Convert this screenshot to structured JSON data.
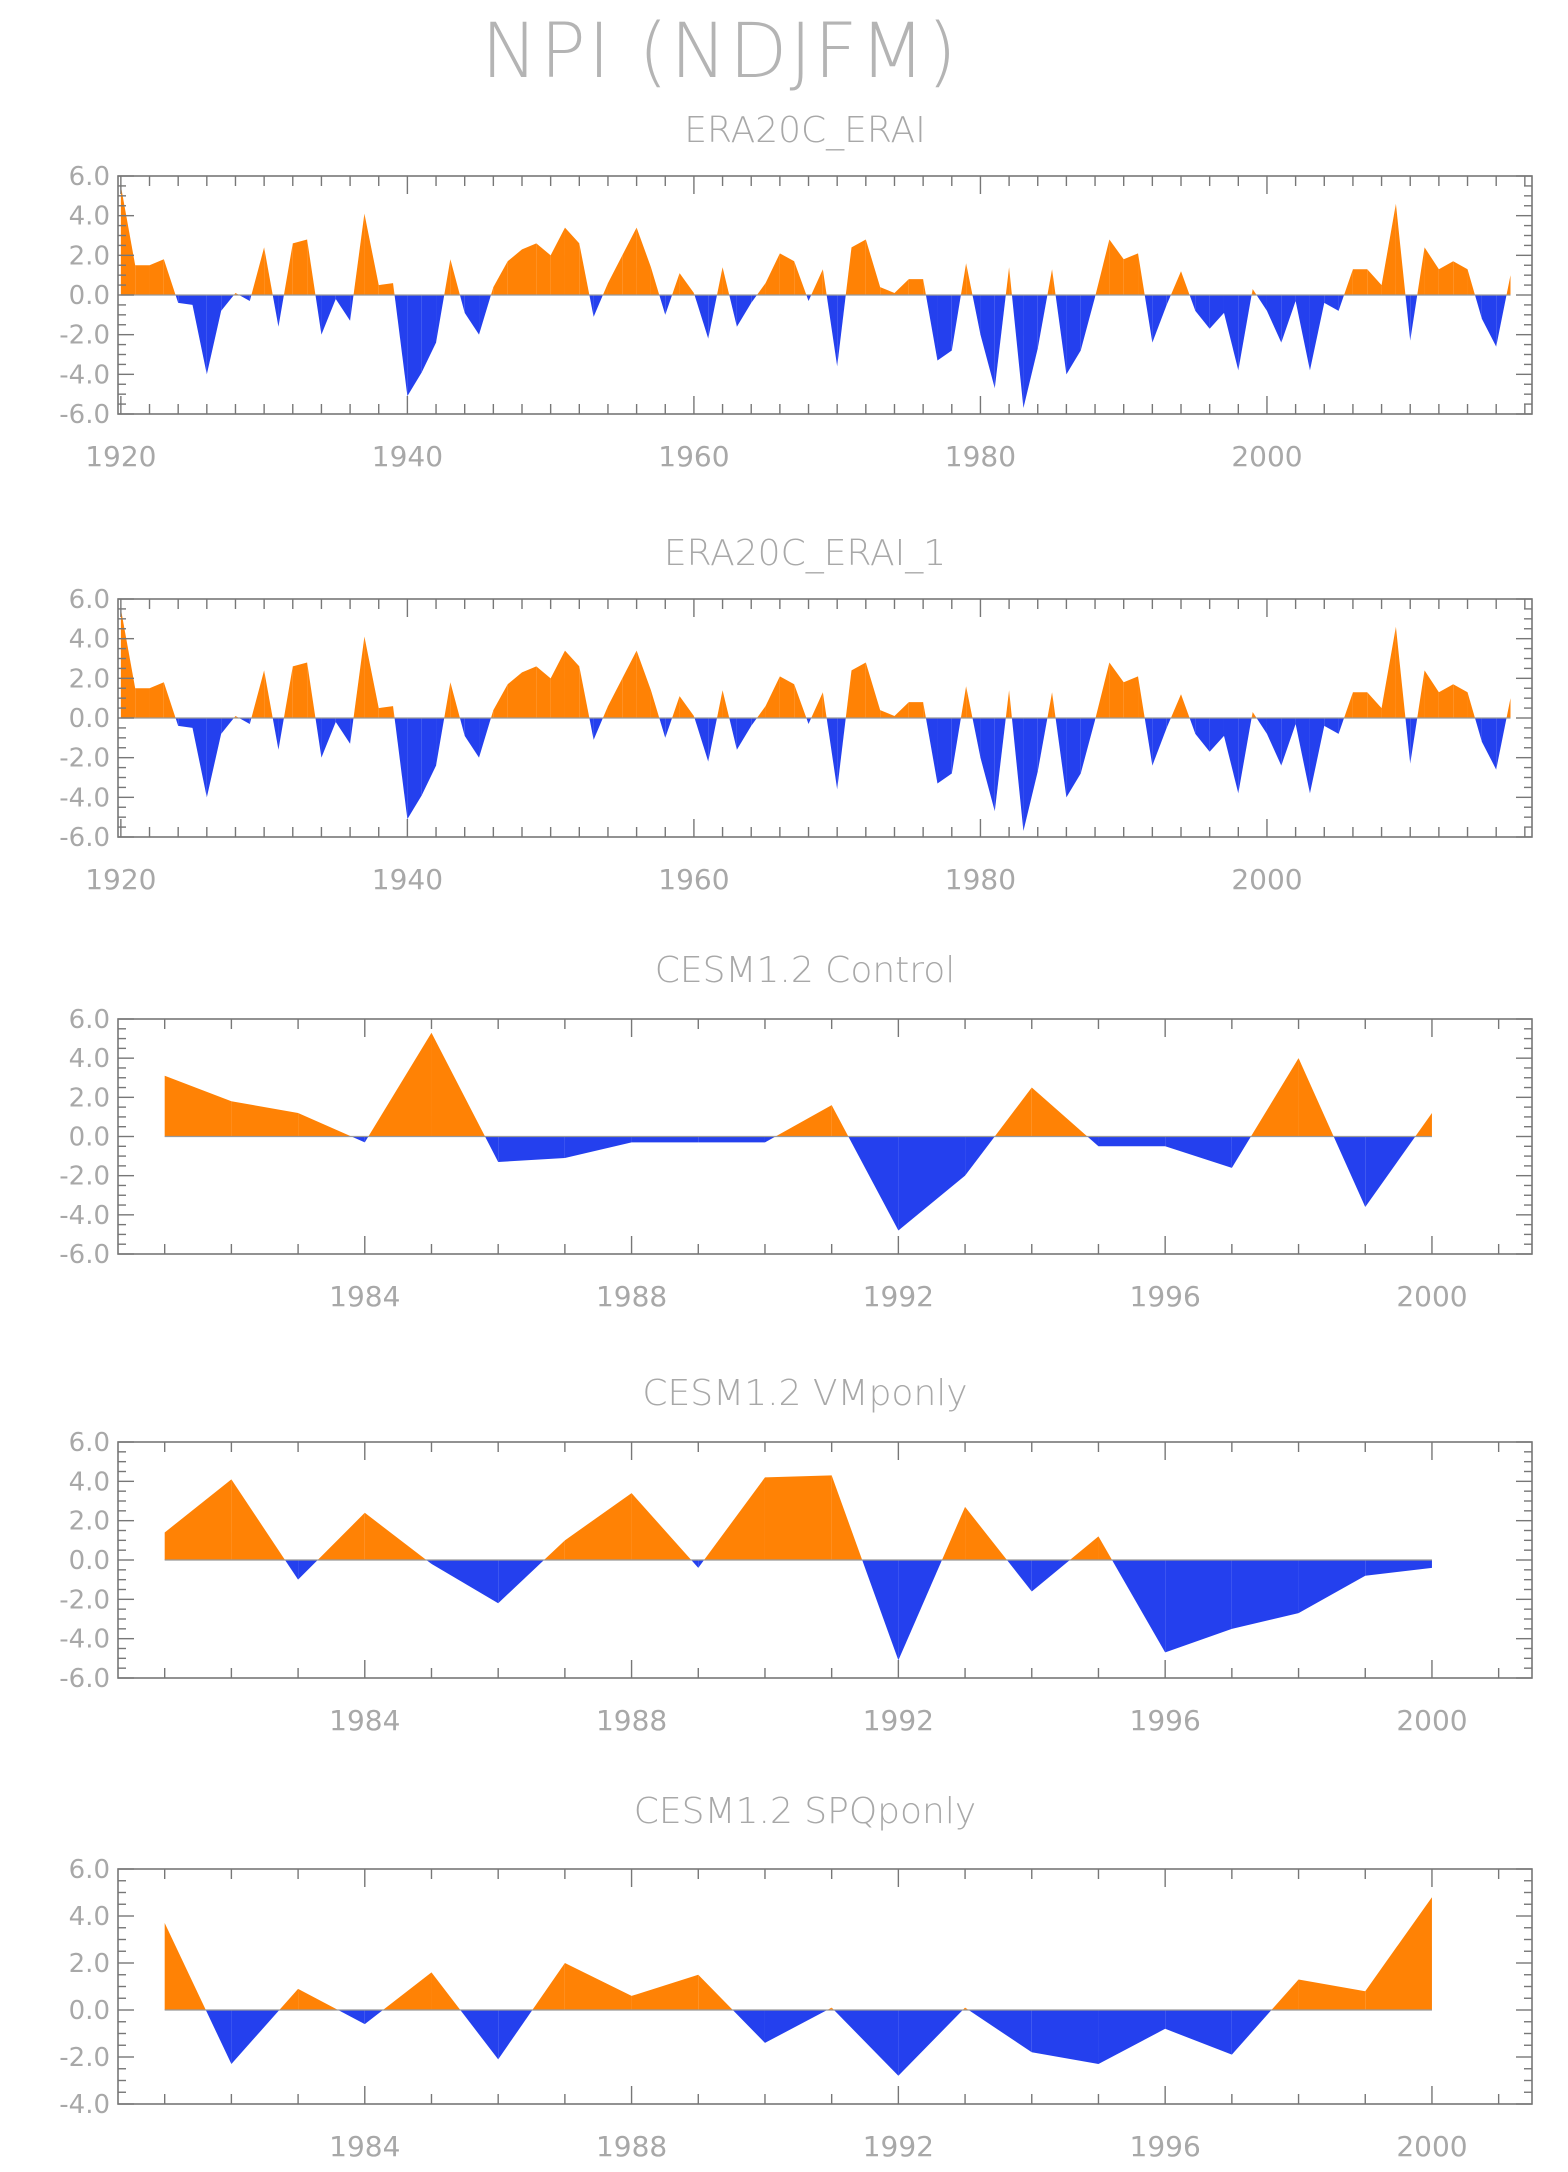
{
  "title": "NPI (NDJFM)",
  "colors": {
    "positive": "#ff8205",
    "negative": "#2440ee",
    "text": "#a8a8a8",
    "axis": "#777777"
  },
  "chart_data": [
    {
      "type": "area",
      "title": "ERA20C_ERAI",
      "x": [
        1920,
        1921,
        1922,
        1923,
        1924,
        1925,
        1926,
        1927,
        1928,
        1929,
        1930,
        1931,
        1932,
        1933,
        1934,
        1935,
        1936,
        1937,
        1938,
        1939,
        1940,
        1941,
        1942,
        1943,
        1944,
        1945,
        1946,
        1947,
        1948,
        1949,
        1950,
        1951,
        1952,
        1953,
        1954,
        1955,
        1956,
        1957,
        1958,
        1959,
        1960,
        1961,
        1962,
        1963,
        1964,
        1965,
        1966,
        1967,
        1968,
        1969,
        1970,
        1971,
        1972,
        1973,
        1974,
        1975,
        1976,
        1977,
        1978,
        1979,
        1980,
        1981,
        1982,
        1983,
        1984,
        1985,
        1986,
        1987,
        1988,
        1989,
        1990,
        1991,
        1992,
        1993,
        1994,
        1995,
        1996,
        1997,
        1998,
        1999,
        2000,
        2001,
        2002,
        2003,
        2004,
        2005,
        2006,
        2007,
        2008,
        2009,
        2010,
        2011,
        2012,
        2013,
        2014,
        2015,
        2016,
        2017
      ],
      "values": [
        5.5,
        1.5,
        1.5,
        1.8,
        -0.4,
        -0.5,
        -4.0,
        -0.8,
        0.1,
        -0.3,
        2.4,
        -1.6,
        2.6,
        2.8,
        -2.0,
        -0.2,
        -1.3,
        4.1,
        0.5,
        0.6,
        -5.1,
        -3.9,
        -2.4,
        1.8,
        -0.9,
        -2.0,
        0.4,
        1.7,
        2.3,
        2.6,
        2.0,
        3.4,
        2.6,
        -1.1,
        0.6,
        2.0,
        3.4,
        1.4,
        -1.0,
        1.1,
        0.1,
        -2.2,
        1.4,
        -1.6,
        -0.4,
        0.6,
        2.1,
        1.7,
        -0.3,
        1.3,
        -3.6,
        2.4,
        2.8,
        0.4,
        0.1,
        0.8,
        0.8,
        -3.3,
        -2.8,
        1.6,
        -2.0,
        -4.7,
        1.4,
        -5.7,
        -2.7,
        1.3,
        -4.0,
        -2.8,
        -0.1,
        2.8,
        1.8,
        2.1,
        -2.4,
        -0.5,
        1.2,
        -0.8,
        -1.7,
        -0.9,
        -3.8,
        0.3,
        -0.8,
        -2.4,
        -0.3,
        -3.8,
        -0.4,
        -0.8,
        1.3,
        1.3,
        0.5,
        4.6,
        -2.3,
        2.4,
        1.3,
        1.7,
        1.3,
        -1.2,
        -2.6,
        1.0
      ],
      "ylim": [
        -6.0,
        6.0
      ],
      "yticks": [
        "6.0",
        "4.0",
        "2.0",
        "0.0",
        "-2.0",
        "-4.0",
        "-6.0"
      ],
      "xticks": [
        "1920",
        "1940",
        "1960",
        "1980",
        "2000"
      ]
    },
    {
      "type": "area",
      "title": "ERA20C_ERAI_1",
      "x": [
        1920,
        1921,
        1922,
        1923,
        1924,
        1925,
        1926,
        1927,
        1928,
        1929,
        1930,
        1931,
        1932,
        1933,
        1934,
        1935,
        1936,
        1937,
        1938,
        1939,
        1940,
        1941,
        1942,
        1943,
        1944,
        1945,
        1946,
        1947,
        1948,
        1949,
        1950,
        1951,
        1952,
        1953,
        1954,
        1955,
        1956,
        1957,
        1958,
        1959,
        1960,
        1961,
        1962,
        1963,
        1964,
        1965,
        1966,
        1967,
        1968,
        1969,
        1970,
        1971,
        1972,
        1973,
        1974,
        1975,
        1976,
        1977,
        1978,
        1979,
        1980,
        1981,
        1982,
        1983,
        1984,
        1985,
        1986,
        1987,
        1988,
        1989,
        1990,
        1991,
        1992,
        1993,
        1994,
        1995,
        1996,
        1997,
        1998,
        1999,
        2000,
        2001,
        2002,
        2003,
        2004,
        2005,
        2006,
        2007,
        2008,
        2009,
        2010,
        2011,
        2012,
        2013,
        2014,
        2015,
        2016,
        2017
      ],
      "values": [
        5.5,
        1.5,
        1.5,
        1.8,
        -0.4,
        -0.5,
        -4.0,
        -0.8,
        0.1,
        -0.3,
        2.4,
        -1.6,
        2.6,
        2.8,
        -2.0,
        -0.2,
        -1.3,
        4.1,
        0.5,
        0.6,
        -5.1,
        -3.9,
        -2.4,
        1.8,
        -0.9,
        -2.0,
        0.4,
        1.7,
        2.3,
        2.6,
        2.0,
        3.4,
        2.6,
        -1.1,
        0.6,
        2.0,
        3.4,
        1.4,
        -1.0,
        1.1,
        0.1,
        -2.2,
        1.4,
        -1.6,
        -0.4,
        0.6,
        2.1,
        1.7,
        -0.3,
        1.3,
        -3.6,
        2.4,
        2.8,
        0.4,
        0.1,
        0.8,
        0.8,
        -3.3,
        -2.8,
        1.6,
        -2.0,
        -4.7,
        1.4,
        -5.7,
        -2.7,
        1.3,
        -4.0,
        -2.8,
        -0.1,
        2.8,
        1.8,
        2.1,
        -2.4,
        -0.5,
        1.2,
        -0.8,
        -1.7,
        -0.9,
        -3.8,
        0.3,
        -0.8,
        -2.4,
        -0.3,
        -3.8,
        -0.4,
        -0.8,
        1.3,
        1.3,
        0.5,
        4.6,
        -2.3,
        2.4,
        1.3,
        1.7,
        1.3,
        -1.2,
        -2.6,
        1.0
      ],
      "ylim": [
        -6.0,
        6.0
      ],
      "yticks": [
        "6.0",
        "4.0",
        "2.0",
        "0.0",
        "-2.0",
        "-4.0",
        "-6.0"
      ],
      "xticks": [
        "1920",
        "1940",
        "1960",
        "1980",
        "2000"
      ]
    },
    {
      "type": "area",
      "title": "CESM1.2 Control",
      "x": [
        1981,
        1982,
        1983,
        1984,
        1985,
        1986,
        1987,
        1988,
        1989,
        1990,
        1991,
        1992,
        1993,
        1994,
        1995,
        1996,
        1997,
        1998,
        1999,
        2000
      ],
      "values": [
        3.1,
        1.8,
        1.2,
        -0.3,
        5.3,
        -1.3,
        -1.1,
        -0.3,
        -0.3,
        -0.3,
        1.6,
        -4.8,
        -2.0,
        2.5,
        -0.5,
        -0.5,
        -1.6,
        4.0,
        -3.6,
        1.2
      ],
      "ylim": [
        -6.0,
        6.0
      ],
      "yticks": [
        "6.0",
        "4.0",
        "2.0",
        "0.0",
        "-2.0",
        "-4.0",
        "-6.0"
      ],
      "xticks": [
        "1984",
        "1988",
        "1992",
        "1996",
        "2000"
      ]
    },
    {
      "type": "area",
      "title": "CESM1.2 VMponly",
      "x": [
        1981,
        1982,
        1983,
        1984,
        1985,
        1986,
        1987,
        1988,
        1989,
        1990,
        1991,
        1992,
        1993,
        1994,
        1995,
        1996,
        1997,
        1998,
        1999,
        2000
      ],
      "values": [
        1.4,
        4.1,
        -1.0,
        2.4,
        -0.2,
        -2.2,
        1.0,
        3.4,
        -0.4,
        4.2,
        4.3,
        -5.1,
        2.7,
        -1.6,
        1.2,
        -4.7,
        -3.5,
        -2.7,
        -0.8,
        -0.4
      ],
      "ylim": [
        -6.0,
        6.0
      ],
      "yticks": [
        "6.0",
        "4.0",
        "2.0",
        "0.0",
        "-2.0",
        "-4.0",
        "-6.0"
      ],
      "xticks": [
        "1984",
        "1988",
        "1992",
        "1996",
        "2000"
      ]
    },
    {
      "type": "area",
      "title": "CESM1.2 SPQponly",
      "x": [
        1981,
        1982,
        1983,
        1984,
        1985,
        1986,
        1987,
        1988,
        1989,
        1990,
        1991,
        1992,
        1993,
        1994,
        1995,
        1996,
        1997,
        1998,
        1999,
        2000
      ],
      "values": [
        3.7,
        -2.3,
        0.9,
        -0.6,
        1.6,
        -2.1,
        2.0,
        0.6,
        1.5,
        -1.4,
        0.1,
        -2.8,
        0.1,
        -1.8,
        -2.3,
        -0.8,
        -1.9,
        1.3,
        0.8,
        4.8
      ],
      "ylim": [
        -4.0,
        6.0
      ],
      "yticks": [
        "6.0",
        "4.0",
        "2.0",
        "0.0",
        "-2.0",
        "-4.0"
      ],
      "xticks": [
        "1984",
        "1988",
        "1992",
        "1996",
        "2000"
      ]
    }
  ]
}
